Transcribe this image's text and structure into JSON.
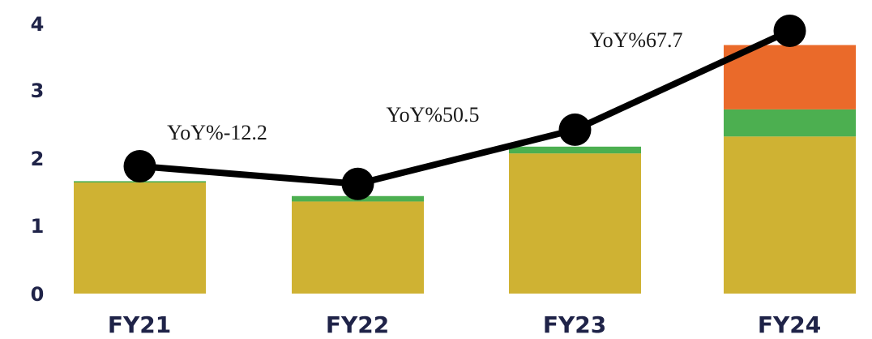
{
  "chart_data": {
    "type": "bar",
    "stacked": true,
    "categories": [
      "FY21",
      "FY22",
      "FY23",
      "FY24"
    ],
    "series": [
      {
        "color": "#cfb233",
        "values": [
          1.64,
          1.36,
          2.07,
          2.32
        ]
      },
      {
        "color": "#4caf50",
        "values": [
          0.02,
          0.08,
          0.1,
          0.4
        ]
      },
      {
        "color": "#ea6a2a",
        "values": [
          0,
          0,
          0,
          0.95
        ]
      }
    ],
    "line": {
      "color": "#000000",
      "values": [
        1.88,
        1.62,
        2.42,
        3.88
      ]
    },
    "annotations": [
      "YoY%-12.2",
      "YoY%50.5",
      "YoY%67.7"
    ],
    "yticks": [
      "0",
      "1",
      "2",
      "3",
      "4"
    ],
    "ylim": [
      0,
      4
    ],
    "grid": false,
    "legend": "none",
    "xlabel": "",
    "ylabel": ""
  }
}
